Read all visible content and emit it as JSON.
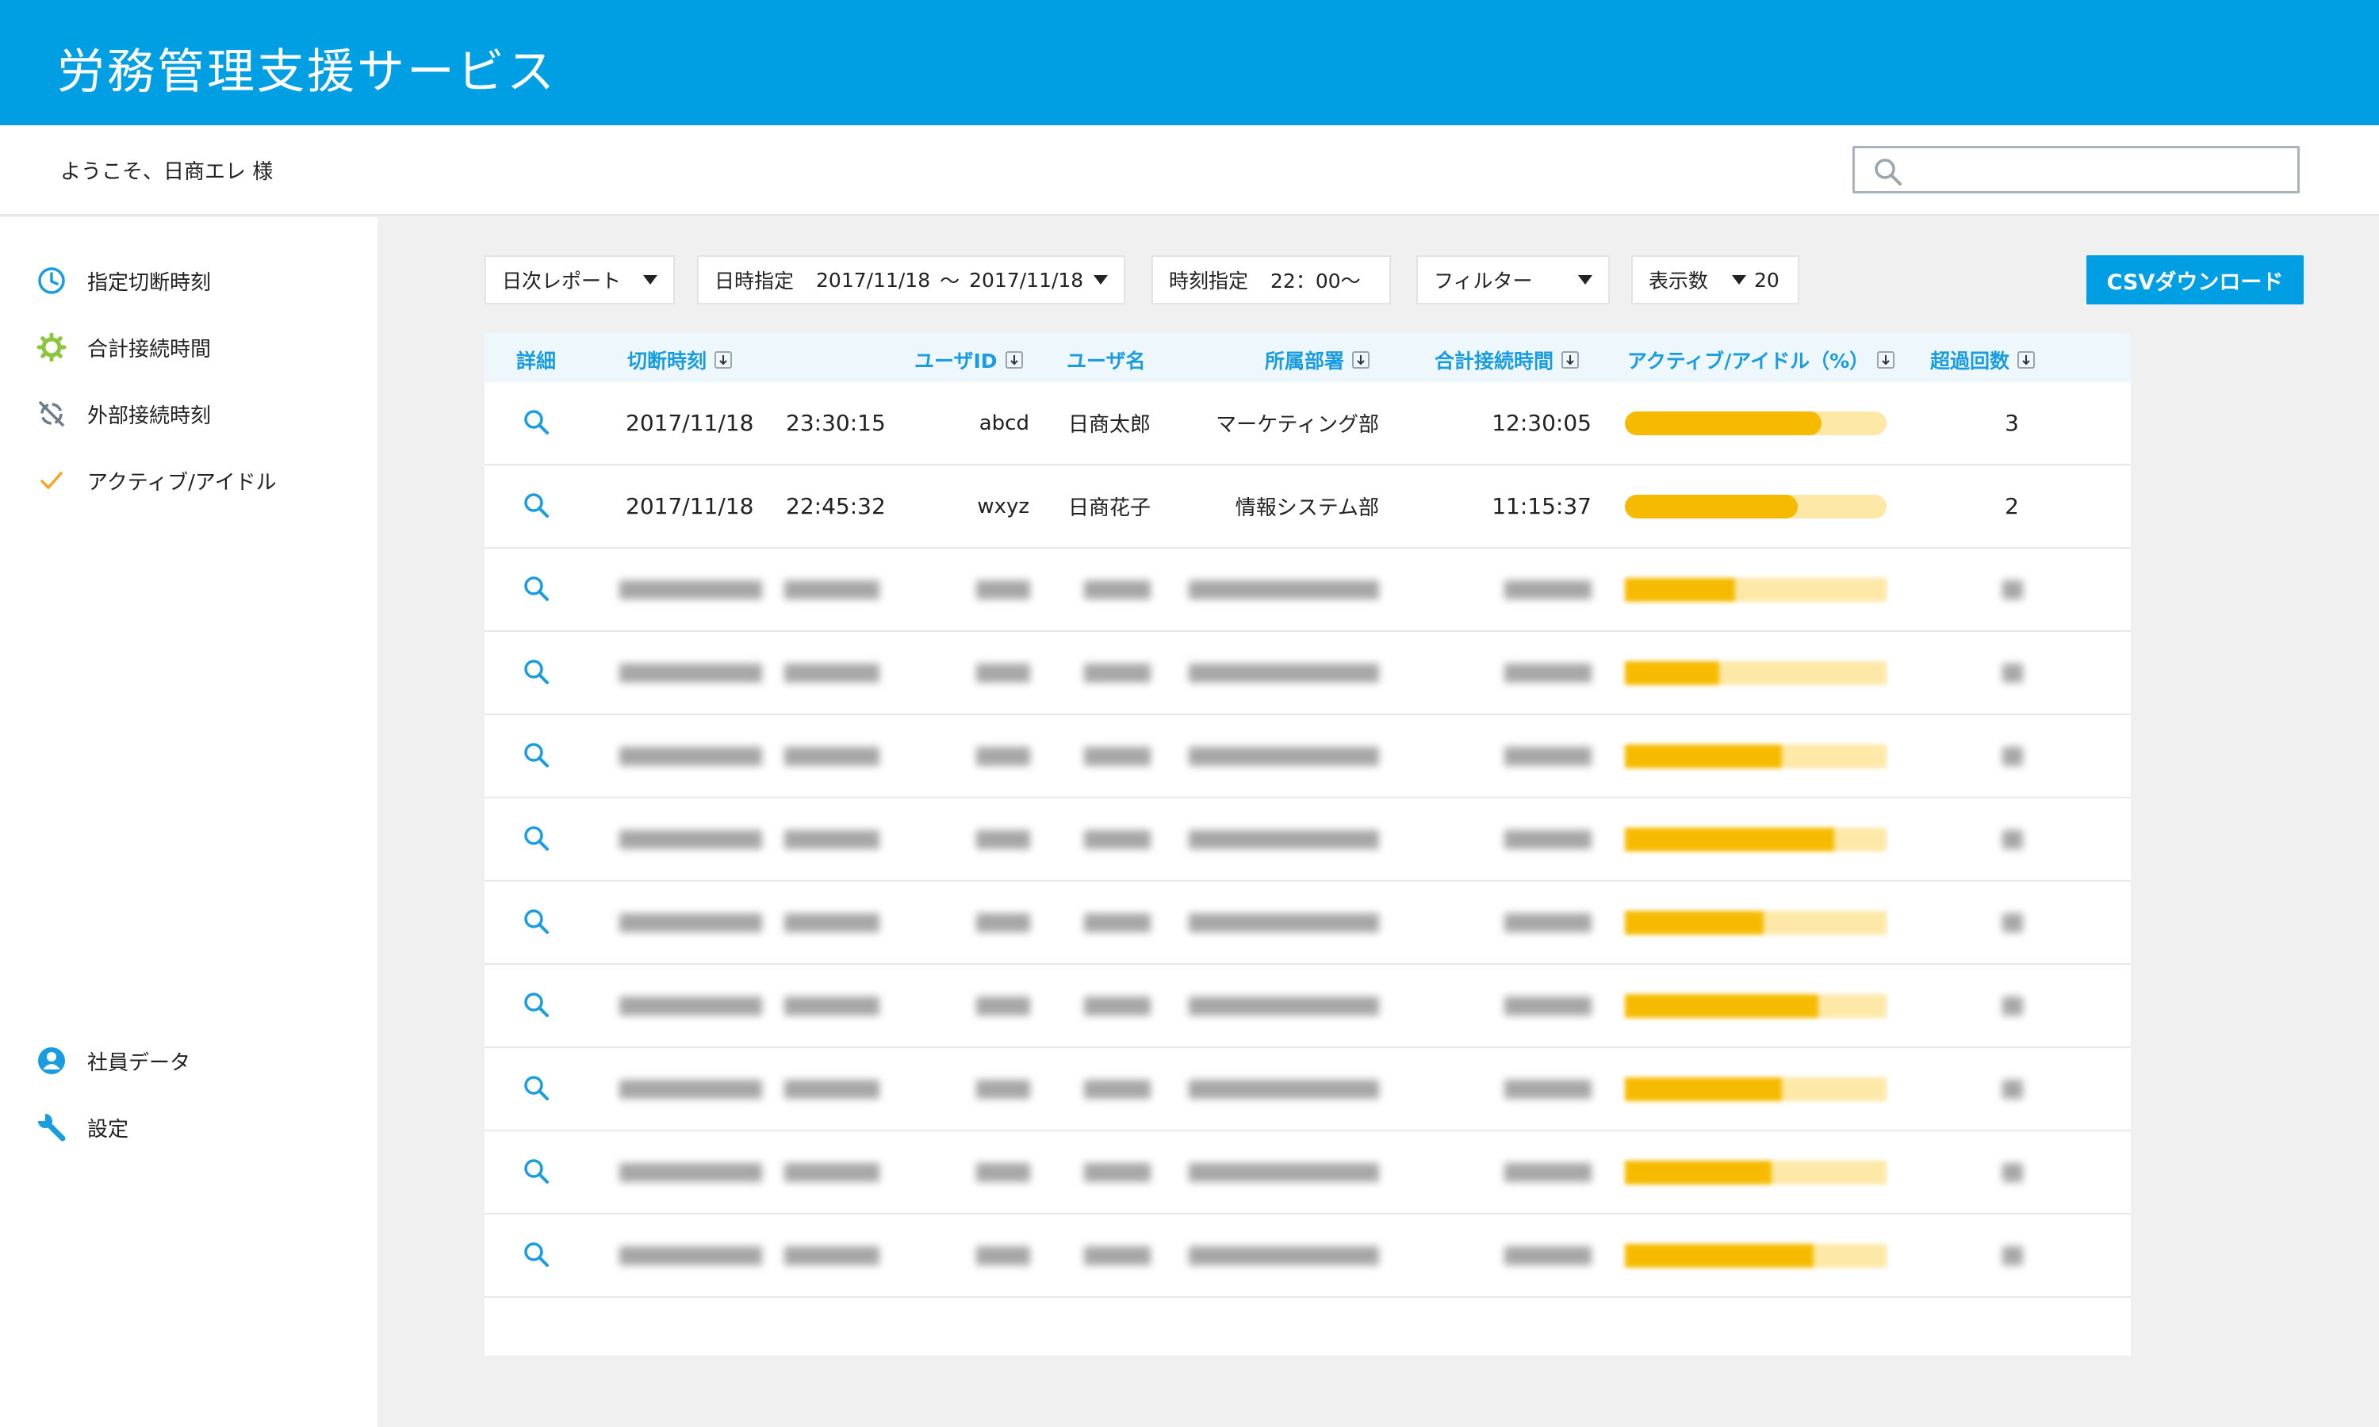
{
  "header": {
    "title": "労務管理支援サービス"
  },
  "subheader": {
    "welcome": "ようこそ、日商エレ 様",
    "search": {
      "value": ""
    }
  },
  "sidebar": {
    "items": [
      {
        "label": "指定切断時刻",
        "icon": "clock-icon",
        "color": "#1a9de0"
      },
      {
        "label": "合計接続時間",
        "icon": "gear-icon",
        "color": "#8cc63f"
      },
      {
        "label": "外部接続時刻",
        "icon": "off-sync-icon",
        "color": "#6c7a89"
      },
      {
        "label": "アクティブ/アイドル",
        "icon": "check-icon",
        "color": "#f5a623"
      }
    ],
    "bottom_items": [
      {
        "label": "社員データ",
        "icon": "user-icon",
        "color": "#1a9de0"
      },
      {
        "label": "設定",
        "icon": "wrench-icon",
        "color": "#1a9de0"
      }
    ]
  },
  "controls": {
    "report_type": "日次レポート",
    "date_label": "日時指定",
    "date_from": "2017/11/18",
    "date_sep": "〜",
    "date_to": "2017/11/18",
    "time_label": "時刻指定",
    "time_value": "22：00〜",
    "filter": "フィルター",
    "per_page_label": "表示数",
    "per_page_value": "20",
    "csv_button": "CSVダウンロード"
  },
  "table": {
    "columns": {
      "detail": "詳細",
      "cut_time": "切断時刻",
      "user_id": "ユーザID",
      "user_name": "ユーザ名",
      "department": "所属部署",
      "total_time": "合計接続時間",
      "active_idle": "アクティブ/アイドル（%）",
      "over_count": "超過回数"
    },
    "rows": [
      {
        "date": "2017/11/18",
        "time": "23:30:15",
        "user_id": "abcd",
        "user_name": "日商太郎",
        "department": "マーケティング部",
        "total_time": "12:30:05",
        "active_pct": 75,
        "over_count": "3"
      },
      {
        "date": "2017/11/18",
        "time": "22:45:32",
        "user_id": "wxyz",
        "user_name": "日商花子",
        "department": "情報システム部",
        "total_time": "11:15:37",
        "active_pct": 66,
        "over_count": "2"
      }
    ],
    "redacted_rows": [
      {
        "active_pct": 42
      },
      {
        "active_pct": 36
      },
      {
        "active_pct": 60
      },
      {
        "active_pct": 80
      },
      {
        "active_pct": 53
      },
      {
        "active_pct": 74
      },
      {
        "active_pct": 60
      },
      {
        "active_pct": 56
      },
      {
        "active_pct": 72
      }
    ]
  },
  "colors": {
    "brand": "#009fe3",
    "bar_fill": "#f6bb00",
    "bar_track": "#fde8a8"
  }
}
